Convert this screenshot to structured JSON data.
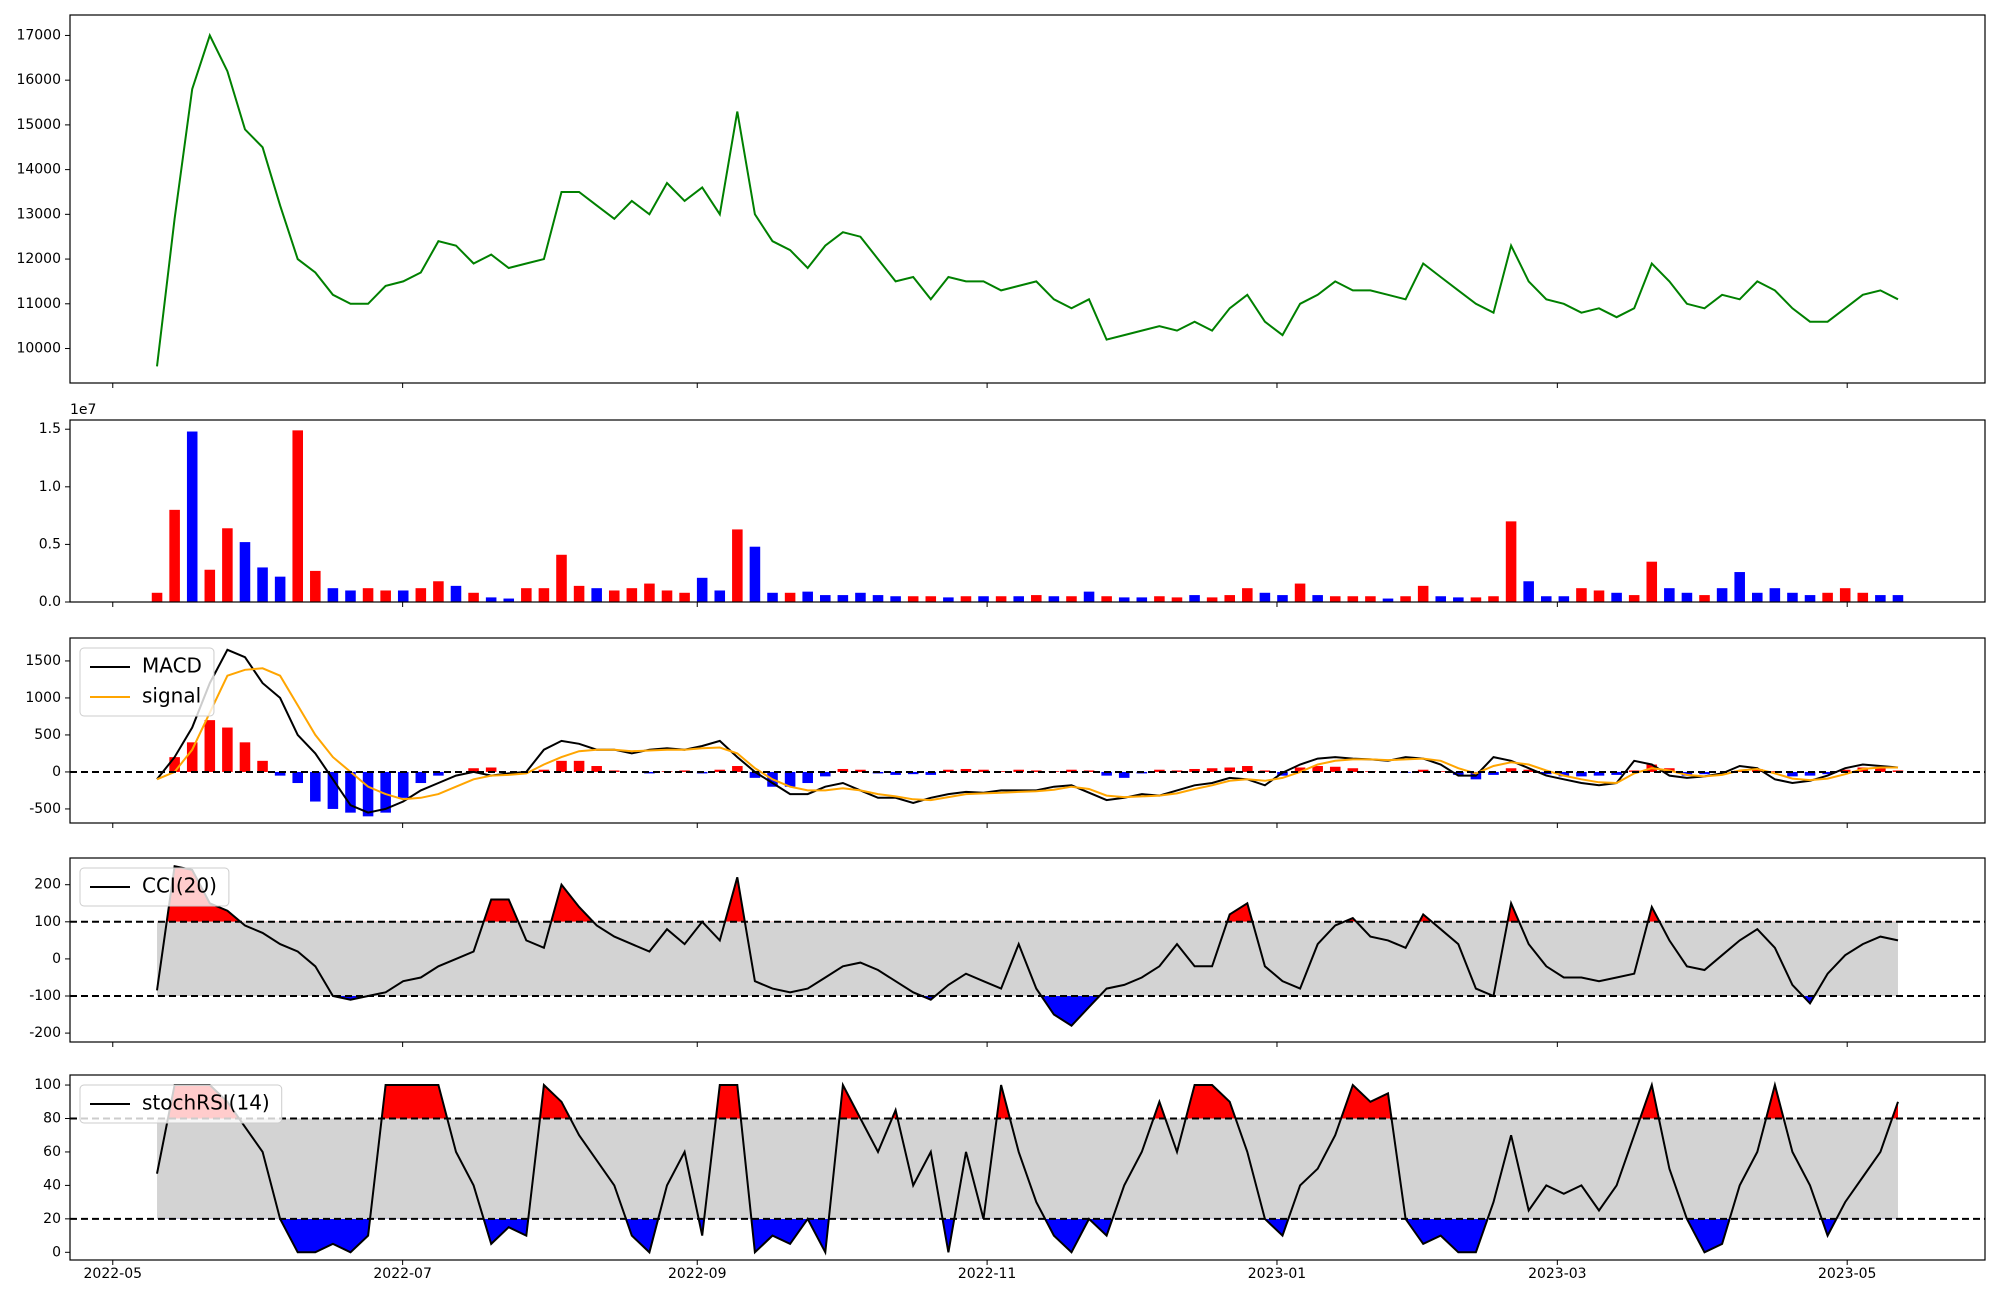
{
  "chart_data": [
    {
      "type": "line",
      "xlim": [
        "2022-04-22",
        "2023-05-30"
      ],
      "ylim": [
        9229,
        17457
      ],
      "yticks": [
        10000,
        11000,
        12000,
        13000,
        14000,
        15000,
        16000,
        17000
      ],
      "series": [
        {
          "color": "green",
          "values": [
            9600,
            12900,
            15800,
            17000,
            16200,
            14900,
            14500,
            13200,
            12000,
            11700,
            11200,
            11000,
            11000,
            11400,
            11500,
            11700,
            12400,
            12300,
            11900,
            12100,
            11800,
            11900,
            12000,
            13500,
            13500,
            13200,
            12900,
            13300,
            13000,
            13700,
            13300,
            13600,
            13000,
            15300,
            13000,
            12400,
            12200,
            11800,
            12300,
            12600,
            12500,
            12000,
            11500,
            11600,
            11100,
            11600,
            11500,
            11500,
            11300,
            11400,
            11500,
            11100,
            10900,
            11100,
            10200,
            10300,
            10400,
            10500,
            10400,
            10600,
            10400,
            10900,
            11200,
            10600,
            10300,
            11000,
            11200,
            11500,
            11300,
            11300,
            11200,
            11100,
            11900,
            11600,
            11300,
            11000,
            10800,
            12300,
            11500,
            11100,
            11000,
            10800,
            10900,
            10700,
            10900,
            11900,
            11500,
            11000,
            10900,
            11200,
            11100,
            11500,
            11300,
            10900,
            10600,
            10600,
            10900,
            11200,
            11300,
            11100
          ]
        }
      ]
    },
    {
      "type": "bar",
      "xlim": [
        "2022-04-22",
        "2023-05-30"
      ],
      "offset_label": "1e7",
      "ylim": [
        0,
        1.58
      ],
      "yticks": [
        {
          "value": 0,
          "label": "0.0"
        },
        0.5,
        {
          "value": 1,
          "label": "1.0"
        },
        1.5
      ],
      "values": [
        0.08,
        0.8,
        1.48,
        0.28,
        0.64,
        0.52,
        0.3,
        0.22,
        1.49,
        0.27,
        0.12,
        0.1,
        0.12,
        0.1,
        0.1,
        0.12,
        0.18,
        0.14,
        0.08,
        0.04,
        0.03,
        0.12,
        0.12,
        0.41,
        0.14,
        0.12,
        0.1,
        0.12,
        0.16,
        0.1,
        0.08,
        0.21,
        0.1,
        0.63,
        0.48,
        0.08,
        0.08,
        0.09,
        0.06,
        0.06,
        0.08,
        0.06,
        0.05,
        0.05,
        0.05,
        0.04,
        0.05,
        0.05,
        0.05,
        0.05,
        0.06,
        0.05,
        0.05,
        0.09,
        0.05,
        0.04,
        0.04,
        0.05,
        0.04,
        0.06,
        0.04,
        0.06,
        0.12,
        0.08,
        0.06,
        0.16,
        0.06,
        0.05,
        0.05,
        0.05,
        0.03,
        0.05,
        0.14,
        0.05,
        0.04,
        0.04,
        0.05,
        0.7,
        0.18,
        0.05,
        0.05,
        0.12,
        0.1,
        0.08,
        0.06,
        0.35,
        0.12,
        0.08,
        0.06,
        0.12,
        0.26,
        0.08,
        0.12,
        0.08,
        0.06,
        0.08,
        0.12,
        0.08,
        0.06,
        0.06
      ],
      "colors": [
        "red",
        "red",
        "blue",
        "red",
        "red",
        "blue",
        "blue",
        "blue",
        "red",
        "red",
        "blue",
        "blue",
        "red",
        "red",
        "blue",
        "red",
        "red",
        "blue",
        "red",
        "blue",
        "blue",
        "red",
        "red",
        "red",
        "red",
        "blue",
        "red",
        "red",
        "red",
        "red",
        "red",
        "blue",
        "blue",
        "red",
        "blue",
        "blue",
        "red",
        "blue",
        "blue",
        "blue",
        "blue",
        "blue",
        "blue",
        "red",
        "red",
        "blue",
        "red",
        "blue",
        "red",
        "blue",
        "red",
        "blue",
        "red",
        "blue",
        "red",
        "blue",
        "blue",
        "red",
        "red",
        "blue",
        "red",
        "red",
        "red",
        "blue",
        "blue",
        "red",
        "blue",
        "red",
        "red",
        "red",
        "blue",
        "red",
        "red",
        "blue",
        "blue",
        "red",
        "red",
        "red",
        "blue",
        "blue",
        "blue",
        "red",
        "red",
        "blue",
        "red",
        "red",
        "blue",
        "blue",
        "red",
        "blue",
        "blue",
        "blue",
        "blue",
        "blue",
        "blue",
        "red",
        "red",
        "red",
        "blue",
        "blue"
      ]
    },
    {
      "type": "macd",
      "xlim": [
        "2022-04-22",
        "2023-05-30"
      ],
      "legend": "upper left",
      "ylim": [
        -690,
        1810
      ],
      "yticks": [
        -500,
        0,
        500,
        1000,
        1500
      ],
      "hlines": [
        0
      ],
      "series": [
        {
          "name": "MACD",
          "color": "black",
          "values": [
            -100,
            200,
            600,
            1200,
            1650,
            1550,
            1200,
            1000,
            500,
            250,
            -100,
            -450,
            -550,
            -500,
            -400,
            -250,
            -150,
            -50,
            0,
            -50,
            -20,
            0,
            300,
            420,
            380,
            300,
            300,
            250,
            300,
            320,
            300,
            350,
            420,
            200,
            0,
            -150,
            -300,
            -300,
            -200,
            -150,
            -250,
            -350,
            -350,
            -420,
            -350,
            -300,
            -270,
            -280,
            -250,
            -250,
            -250,
            -200,
            -180,
            -280,
            -380,
            -350,
            -300,
            -320,
            -250,
            -180,
            -150,
            -80,
            -100,
            -180,
            -10,
            100,
            180,
            200,
            180,
            170,
            150,
            200,
            180,
            100,
            -50,
            -50,
            200,
            150,
            50,
            -50,
            -100,
            -150,
            -180,
            -150,
            150,
            100,
            -50,
            -80,
            -60,
            -20,
            80,
            50,
            -100,
            -150,
            -120,
            -50,
            50,
            100,
            80,
            60
          ]
        },
        {
          "name": "signal",
          "color": "orange",
          "values": [
            -100,
            0,
            300,
            800,
            1300,
            1380,
            1400,
            1300,
            900,
            500,
            200,
            0,
            -200,
            -300,
            -370,
            -350,
            -300,
            -200,
            -100,
            -50,
            -40,
            -20,
            100,
            200,
            280,
            300,
            300,
            280,
            290,
            300,
            300,
            320,
            330,
            250,
            50,
            -100,
            -200,
            -250,
            -250,
            -220,
            -250,
            -300,
            -330,
            -370,
            -380,
            -340,
            -300,
            -290,
            -280,
            -270,
            -260,
            -240,
            -200,
            -230,
            -320,
            -340,
            -330,
            -320,
            -290,
            -230,
            -180,
            -120,
            -100,
            -120,
            -80,
            0,
            100,
            150,
            170,
            170,
            160,
            170,
            180,
            150,
            50,
            -20,
            80,
            130,
            100,
            20,
            -50,
            -100,
            -140,
            -150,
            -20,
            50,
            20,
            -40,
            -60,
            -40,
            20,
            40,
            -20,
            -90,
            -110,
            -90,
            -30,
            40,
            60,
            60
          ]
        }
      ],
      "histogram": {
        "up_color": "red",
        "down_color": "blue",
        "values": [
          0,
          200,
          400,
          700,
          600,
          400,
          150,
          -50,
          -150,
          -400,
          -500,
          -550,
          -600,
          -550,
          -350,
          -150,
          -50,
          0,
          50,
          60,
          0,
          0,
          30,
          150,
          150,
          80,
          20,
          0,
          -20,
          10,
          20,
          -20,
          30,
          80,
          -80,
          -200,
          -200,
          -150,
          -60,
          40,
          30,
          -20,
          -40,
          -30,
          -40,
          30,
          40,
          30,
          10,
          30,
          20,
          10,
          30,
          20,
          -50,
          -80,
          -20,
          30,
          20,
          40,
          50,
          60,
          80,
          20,
          -50,
          60,
          80,
          70,
          50,
          10,
          0,
          -10,
          30,
          10,
          -40,
          -100,
          -40,
          50,
          30,
          -30,
          -60,
          -60,
          -50,
          -40,
          20,
          100,
          50,
          -50,
          -30,
          0,
          20,
          40,
          10,
          -60,
          -50,
          -30,
          30,
          60,
          60,
          20
        ]
      }
    },
    {
      "type": "band",
      "xlim": [
        "2022-04-22",
        "2023-05-30"
      ],
      "legend": "upper left",
      "ylim": [
        -224,
        272
      ],
      "yticks": [
        -200,
        -100,
        0,
        100,
        200
      ],
      "bands": [
        -100,
        100
      ],
      "band_color": "lightgray",
      "above_color": "red",
      "below_color": "blue",
      "series": [
        {
          "name": "CCI(20)",
          "color": "black",
          "values": [
            -85,
            250,
            240,
            150,
            130,
            90,
            70,
            40,
            20,
            -20,
            -100,
            -110,
            -100,
            -90,
            -60,
            -50,
            -20,
            0,
            20,
            160,
            160,
            50,
            30,
            200,
            140,
            90,
            60,
            40,
            20,
            80,
            40,
            100,
            50,
            220,
            -60,
            -80,
            -90,
            -80,
            -50,
            -20,
            -10,
            -30,
            -60,
            -90,
            -110,
            -70,
            -40,
            -60,
            -80,
            40,
            -80,
            -150,
            -180,
            -130,
            -80,
            -70,
            -50,
            -20,
            40,
            -20,
            -20,
            120,
            150,
            -20,
            -60,
            -80,
            40,
            90,
            110,
            60,
            50,
            30,
            120,
            80,
            40,
            -80,
            -100,
            150,
            40,
            -20,
            -50,
            -50,
            -60,
            -50,
            -40,
            140,
            50,
            -20,
            -30,
            10,
            50,
            80,
            30,
            -70,
            -120,
            -40,
            10,
            40,
            60,
            50
          ]
        }
      ]
    },
    {
      "type": "band",
      "xlim": [
        "2022-04-22",
        "2023-05-30"
      ],
      "legend": "upper left",
      "ylim": [
        -4.6,
        106
      ],
      "yticks": [
        0,
        20,
        40,
        60,
        80,
        100
      ],
      "xticks": [
        "2022-05",
        "2022-07",
        "2022-09",
        "2022-11",
        "2023-01",
        "2023-03",
        "2023-05"
      ],
      "bands": [
        20,
        80
      ],
      "band_color": "lightgray",
      "above_color": "red",
      "below_color": "blue",
      "series": [
        {
          "name": "stochRSI(14)",
          "color": "black",
          "values": [
            47,
            100,
            100,
            100,
            90,
            75,
            60,
            20,
            0,
            0,
            5,
            0,
            10,
            100,
            100,
            100,
            100,
            60,
            40,
            5,
            15,
            10,
            100,
            90,
            70,
            55,
            40,
            10,
            0,
            40,
            60,
            10,
            100,
            100,
            0,
            10,
            5,
            20,
            0,
            100,
            80,
            60,
            85,
            40,
            60,
            0,
            60,
            20,
            100,
            60,
            30,
            10,
            0,
            20,
            10,
            40,
            60,
            90,
            60,
            100,
            100,
            90,
            60,
            20,
            10,
            40,
            50,
            70,
            100,
            90,
            95,
            20,
            5,
            10,
            0,
            0,
            30,
            70,
            25,
            40,
            35,
            40,
            25,
            40,
            70,
            100,
            50,
            20,
            0,
            5,
            40,
            60,
            100,
            60,
            40,
            10,
            30,
            45,
            60,
            90
          ]
        }
      ]
    }
  ]
}
